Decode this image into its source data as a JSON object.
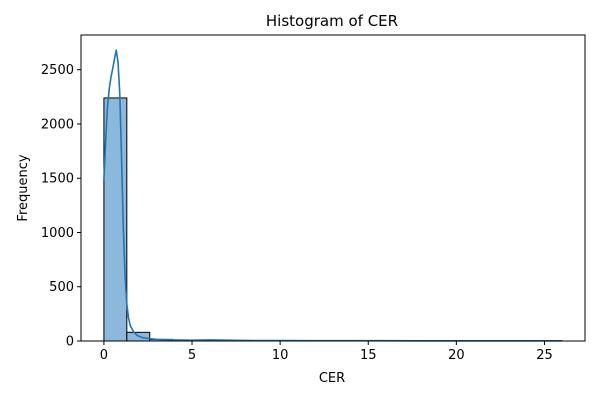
{
  "chart_data": {
    "type": "bar",
    "title": "Histogram of CER",
    "xlabel": "CER",
    "ylabel": "Frequency",
    "xlim": [
      -1.3,
      27.3
    ],
    "ylim": [
      0,
      2820
    ],
    "xticks": [
      0,
      5,
      10,
      15,
      20,
      25
    ],
    "yticks": [
      0,
      500,
      1000,
      1500,
      2000,
      2500
    ],
    "bins": [
      {
        "x0": 0.0,
        "x1": 1.3,
        "count": 2240
      },
      {
        "x0": 1.3,
        "x1": 2.6,
        "count": 80
      },
      {
        "x0": 2.6,
        "x1": 3.9,
        "count": 15
      },
      {
        "x0": 3.9,
        "x1": 5.2,
        "count": 8
      },
      {
        "x0": 5.2,
        "x1": 6.5,
        "count": 5
      },
      {
        "x0": 6.5,
        "x1": 7.8,
        "count": 3
      },
      {
        "x0": 7.8,
        "x1": 9.1,
        "count": 2
      },
      {
        "x0": 9.1,
        "x1": 10.4,
        "count": 1
      },
      {
        "x0": 10.4,
        "x1": 11.7,
        "count": 1
      },
      {
        "x0": 11.7,
        "x1": 13.0,
        "count": 1
      },
      {
        "x0": 13.0,
        "x1": 14.3,
        "count": 0
      },
      {
        "x0": 14.3,
        "x1": 15.6,
        "count": 1
      },
      {
        "x0": 15.6,
        "x1": 16.9,
        "count": 1
      },
      {
        "x0": 16.9,
        "x1": 18.2,
        "count": 0
      },
      {
        "x0": 18.2,
        "x1": 19.5,
        "count": 1
      },
      {
        "x0": 19.5,
        "x1": 20.8,
        "count": 0
      },
      {
        "x0": 20.8,
        "x1": 22.1,
        "count": 0
      },
      {
        "x0": 22.1,
        "x1": 23.4,
        "count": 0
      },
      {
        "x0": 23.4,
        "x1": 24.7,
        "count": 0
      },
      {
        "x0": 24.7,
        "x1": 26.0,
        "count": 1
      }
    ],
    "kde": {
      "x": [
        0,
        0.1,
        0.2,
        0.3,
        0.4,
        0.5,
        0.6,
        0.7,
        0.8,
        0.9,
        1.0,
        1.1,
        1.2,
        1.3,
        1.4,
        1.5,
        1.7,
        1.9,
        2.2,
        2.6,
        3.0,
        3.5,
        4.0,
        5.0,
        6.0,
        7.0,
        8.0,
        10.0,
        12.0,
        15.0,
        18.0,
        21.0,
        24.0,
        26.0
      ],
      "y": [
        1480,
        1850,
        2150,
        2320,
        2430,
        2510,
        2600,
        2680,
        2570,
        2280,
        1700,
        1050,
        600,
        340,
        210,
        140,
        80,
        50,
        30,
        22,
        15,
        12,
        10,
        8,
        10,
        8,
        5,
        4,
        3,
        3,
        2,
        2,
        2,
        2
      ]
    },
    "colors": {
      "bar_fill": "#8cb8dc",
      "bar_edge": "#000000",
      "kde_line": "#2076b2",
      "axis": "#000000"
    },
    "grid": false,
    "legend": "none"
  }
}
